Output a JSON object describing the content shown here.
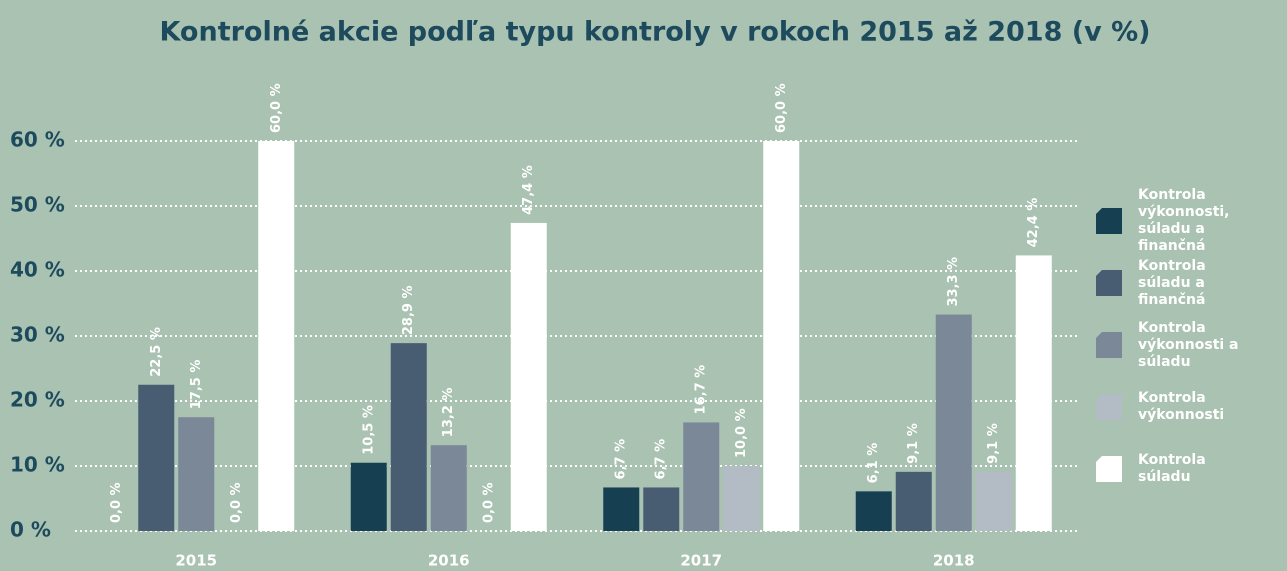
{
  "chart_data": {
    "type": "bar",
    "title": "Kontrolné akcie podľa typu kontroly v rokoch 2015 až 2018 (v %)",
    "categories": [
      "2015",
      "2016",
      "2017",
      "2018"
    ],
    "series": [
      {
        "name": "Kontrola výkonnosti, súladu a finančná",
        "color": "#173f52",
        "values": [
          0.0,
          10.5,
          6.7,
          6.1
        ],
        "value_labels": [
          "0,0 %",
          "10,5 %",
          "6,7 %",
          "6,1 %"
        ]
      },
      {
        "name": "Kontrola súladu a finančná",
        "color": "#485c72",
        "values": [
          22.5,
          28.9,
          6.7,
          9.1
        ],
        "value_labels": [
          "22,5 %",
          "28,9 %",
          "6,7 %",
          "9,1 %"
        ]
      },
      {
        "name": "Kontrola výkonnosti a súladu",
        "color": "#7a8898",
        "values": [
          17.5,
          13.2,
          16.7,
          33.3
        ],
        "value_labels": [
          "17,5 %",
          "13,2 %",
          "16,7 %",
          "33,3 %"
        ]
      },
      {
        "name": "Kontrola výkonnosti",
        "color": "#b3bcc4",
        "values": [
          0.0,
          0.0,
          10.0,
          9.1
        ],
        "value_labels": [
          "0,0 %",
          "0,0 %",
          "10,0 %",
          "9,1 %"
        ]
      },
      {
        "name": "Kontrola súladu",
        "color": "#ffffff",
        "values": [
          60.0,
          47.4,
          60.0,
          42.4
        ],
        "value_labels": [
          "60,0 %",
          "47,4 %",
          "60,0 %",
          "42,4 %"
        ]
      }
    ],
    "ylim": [
      0,
      60
    ],
    "yticks": [
      {
        "value": 0,
        "label": "0 %"
      },
      {
        "value": 10,
        "label": "10 %"
      },
      {
        "value": 20,
        "label": "20 %"
      },
      {
        "value": 30,
        "label": "30 %"
      },
      {
        "value": 40,
        "label": "40 %"
      },
      {
        "value": 50,
        "label": "50 %"
      },
      {
        "value": 60,
        "label": "60 %"
      }
    ],
    "grid": true,
    "legend": "right"
  }
}
